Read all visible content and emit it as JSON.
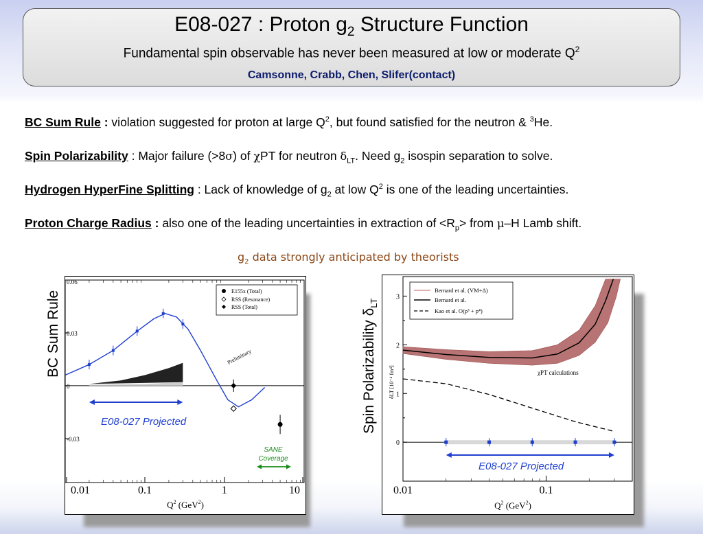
{
  "header": {
    "title_main": "E08-027 : Proton g",
    "title_sub": "2",
    "title_rest": " Structure Function",
    "subtitle_main": "Fundamental spin observable has never been measured at low or moderate Q",
    "subtitle_sup": "2",
    "authors": "Camsonne,  Crabb,  Chen,  Slifer(contact)"
  },
  "points": [
    {
      "key": "BC Sum Rule",
      "sep": " :",
      "text_a": "  violation suggested for proton at large Q",
      "sup_a": "2",
      "text_b": ", but found satisfied for the neutron & ",
      "sup_b": "3",
      "text_c": "He."
    },
    {
      "key": "Spin Polarizability",
      "text_a": " : Major failure (>8",
      "sym_a": "σ",
      "text_b": ") of ",
      "sym_b": "χ",
      "text_c": "PT for neutron ",
      "sym_c": "δ",
      "sub_c": "LT",
      "text_d": ".  Need g",
      "sub_d": "2",
      "text_e": " isospin separation to solve."
    },
    {
      "key": "Hydrogen HyperFine Splitting",
      "text_a": " : Lack of knowledge of g",
      "sub_a": "2",
      "text_b": " at low Q",
      "sup_b": "2",
      "text_c": " is one of the leading uncertainties."
    },
    {
      "key": "Proton Charge Radius",
      "sep": " :",
      "text_a": " also one of the leading uncertainties in extraction of <R",
      "sub_a": "p",
      "text_b": "> from ",
      "sym_b": "μ",
      "text_c": "–H Lamb shift."
    }
  ],
  "anticipated": {
    "g": "g",
    "sub": "2",
    "text": " data strongly anticipated by theorists"
  },
  "chart_data": [
    {
      "type": "scatter",
      "ylabel": "BC Sum Rule",
      "xlabel": "Q",
      "xlabel_sup": "2",
      "xlabel_unit_a": " (GeV",
      "xlabel_unit_sup": "2",
      "xlabel_unit_b": ")",
      "xscale": "log",
      "xlim": [
        0.01,
        10
      ],
      "ylim": [
        -0.055,
        0.06
      ],
      "xticks": [
        "0.01",
        "0.1",
        "1",
        "10"
      ],
      "yticks": [
        "0.06",
        "0.03",
        "0",
        "-0.03"
      ],
      "legend": [
        "E155x (Total)",
        "RSS  (Resonance)",
        "RSS  (Total)"
      ],
      "annotations": {
        "preliminary": "Preliminary",
        "projected": "E08-027 Projected",
        "sane_1": "SANE",
        "sane_2": "Coverage"
      },
      "series": [
        {
          "name": "E155x (Total)",
          "x": [
            5.0
          ],
          "y": [
            -0.022
          ]
        },
        {
          "name": "RSS  (Resonance)",
          "x": [
            1.3
          ],
          "y": [
            -0.013
          ]
        },
        {
          "name": "RSS  (Total)",
          "x": [
            1.3
          ],
          "y": [
            0.0
          ]
        }
      ],
      "projected_points": {
        "x": [
          0.02,
          0.04,
          0.08,
          0.17,
          0.3
        ],
        "y": [
          0.012,
          0.02,
          0.031,
          0.041,
          0.035
        ]
      },
      "colors": {
        "curve": "#1f3fcf",
        "arrow": "#1f3fcf",
        "sane": "#1a8a1a"
      }
    },
    {
      "type": "line",
      "ylabel": "Spin Polarizability δ",
      "ylabel_sub": "LT",
      "inner_ylabel": "δLT [10⁻⁴ fm⁴]",
      "xlabel": "Q",
      "xlabel_sup": "2",
      "xlabel_unit_a": " (GeV",
      "xlabel_unit_sup": "2",
      "xlabel_unit_b": ")",
      "xscale": "log",
      "xlim": [
        0.01,
        0.4
      ],
      "ylim": [
        -0.8,
        3.4
      ],
      "xticks": [
        "0.01",
        "0.1"
      ],
      "yticks": [
        "3",
        "2",
        "1",
        "0"
      ],
      "legend": [
        "Bernard et al. (VM+Δ)",
        "Bernard et al.",
        "Kao et al. O(p³ + p⁴)"
      ],
      "annotations": {
        "calc": "χPT calculations",
        "projected": "E08-027 Projected"
      },
      "series": [
        {
          "name": "Kao et al. O(p³ + p⁴)",
          "x": [
            0.01,
            0.02,
            0.04,
            0.08,
            0.16,
            0.3
          ],
          "y": [
            1.3,
            1.2,
            0.98,
            0.7,
            0.42,
            0.22
          ]
        }
      ],
      "projected_points": {
        "x": [
          0.02,
          0.04,
          0.08,
          0.16,
          0.3
        ],
        "y": [
          0,
          0,
          0,
          0,
          0
        ]
      },
      "colors": {
        "band": "#b87474",
        "arrow": "#1f3fcf"
      }
    }
  ]
}
